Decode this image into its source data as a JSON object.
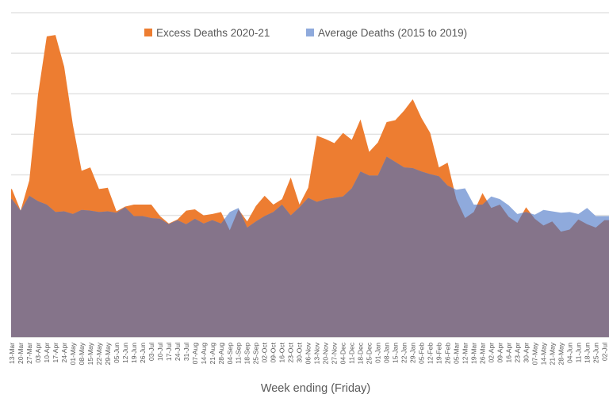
{
  "chart_data": {
    "type": "area",
    "title": "",
    "xlabel": "Week ending (Friday)",
    "ylabel": "",
    "ylim": [
      0,
      24000
    ],
    "y_gridlines_every": 3000,
    "grid": true,
    "legend_position": "top",
    "categories": [
      "13-Mar",
      "20-Mar",
      "27-Mar",
      "03-Apr",
      "10-Apr",
      "17-Apr",
      "24-Apr",
      "01-May",
      "08-May",
      "15-May",
      "22-May",
      "29-May",
      "05-Jun",
      "12-Jun",
      "19-Jun",
      "26-Jun",
      "03-Jul",
      "10-Jul",
      "17-Jul",
      "24-Jul",
      "31-Jul",
      "07-Aug",
      "14-Aug",
      "21-Aug",
      "28-Aug",
      "04-Sep",
      "11-Sep",
      "18-Sep",
      "25-Sep",
      "02-Oct",
      "09-Oct",
      "16-Oct",
      "23-Oct",
      "30-Oct",
      "06-Nov",
      "13-Nov",
      "20-Nov",
      "27-Nov",
      "04-Dec",
      "11-Dec",
      "18-Dec",
      "25-Dec",
      "01-Jan",
      "08-Jan",
      "15-Jan",
      "22-Jan",
      "29-Jan",
      "05-Feb",
      "12-Feb",
      "19-Feb",
      "26-Feb",
      "05-Mar",
      "12-Mar",
      "19-Mar",
      "26-Mar",
      "02-Apr",
      "09-Apr",
      "16-Apr",
      "23-Apr",
      "30-Apr",
      "07-May",
      "14-May",
      "21-May",
      "28-May",
      "04-Jun",
      "11-Jun",
      "18-Jun",
      "25-Jun",
      "02-Jul"
    ],
    "series": [
      {
        "name": "Excess Deaths 2020-21",
        "color": "#ED7D31",
        "values": [
          10950,
          9350,
          11600,
          17950,
          22250,
          22350,
          20000,
          15700,
          12300,
          12550,
          10950,
          11050,
          9300,
          9650,
          9800,
          9800,
          9800,
          8950,
          8400,
          8700,
          9350,
          9450,
          9000,
          9100,
          9250,
          7900,
          9450,
          8550,
          9700,
          10450,
          9800,
          10200,
          11800,
          9800,
          11050,
          14900,
          14650,
          14350,
          15100,
          14600,
          16100,
          13700,
          14400,
          15900,
          16050,
          16750,
          17600,
          16200,
          15100,
          12550,
          12900,
          10200,
          8800,
          9250,
          10650,
          9550,
          9800,
          8900,
          8450,
          9600,
          8750,
          8250,
          8550,
          7800,
          7950,
          8700,
          8350,
          8100,
          8650
        ]
      },
      {
        "name": "Average Deaths (2015 to 2019)",
        "color": "#8FAADC",
        "values": [
          10200,
          9350,
          10450,
          10050,
          9800,
          9250,
          9300,
          9100,
          9400,
          9350,
          9250,
          9300,
          9200,
          9600,
          8950,
          8950,
          8800,
          8750,
          8350,
          8650,
          8350,
          8750,
          8400,
          8650,
          8400,
          9250,
          9550,
          8100,
          8550,
          8950,
          9250,
          9800,
          9000,
          9600,
          10300,
          10000,
          10200,
          10300,
          10400,
          11000,
          12250,
          11950,
          11950,
          13350,
          12950,
          12550,
          12500,
          12250,
          12050,
          11900,
          11200,
          10900,
          11000,
          9800,
          9800,
          10400,
          10200,
          9750,
          9100,
          9250,
          9050,
          9400,
          9300,
          9200,
          9250,
          9100,
          9550,
          8950,
          8950
        ]
      }
    ],
    "overlap_color": "#85748A"
  }
}
